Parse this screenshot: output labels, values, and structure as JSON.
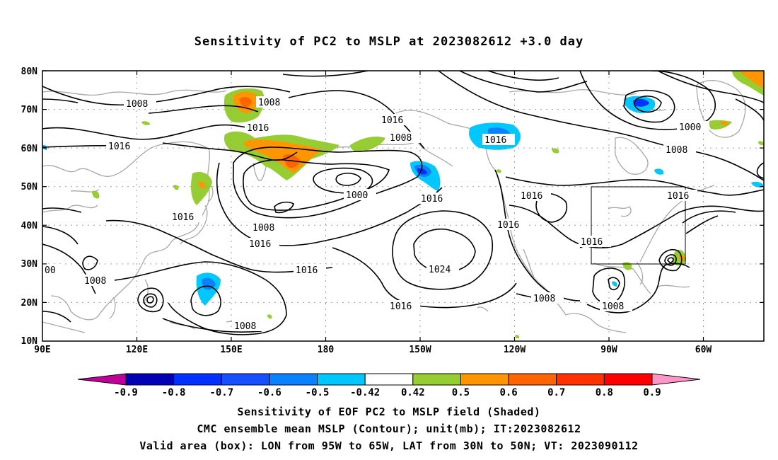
{
  "title": "Sensitivity of PC2 to MSLP at 2023082612 +3.0 day",
  "latitude_labels": [
    "80N",
    "70N",
    "60N",
    "50N",
    "40N",
    "30N",
    "20N",
    "10N"
  ],
  "longitude_labels": [
    "90E",
    "120E",
    "150E",
    "180",
    "150W",
    "120W",
    "90W",
    "60W"
  ],
  "colorbar": {
    "labels": [
      "-0.9",
      "-0.8",
      "-0.7",
      "-0.6",
      "-0.5",
      "-0.42",
      "0.42",
      "0.5",
      "0.6",
      "0.7",
      "0.8",
      "0.9"
    ],
    "colors": [
      "#bf0099",
      "#0000b4",
      "#0032ff",
      "#1450ff",
      "#0a82ff",
      "#00c8ff",
      "#ffffff",
      "#96cd32",
      "#ff9600",
      "#ff6400",
      "#ff3200",
      "#ff0000",
      "#ff96c8"
    ]
  },
  "contour_labels": {
    "c1": "1008",
    "c2": "1016",
    "c3": "1016",
    "c4": "1008",
    "c5": "1016",
    "c6": "1016",
    "c7": "1000",
    "c8": "1000",
    "c9": "1008",
    "c10": "1016",
    "c11": "1016",
    "c12": "1016",
    "c13": "1016",
    "c14": "1016",
    "c15": "1024",
    "c16": "1016",
    "c17": "1008",
    "c18": "1008",
    "c19": "1008",
    "c20": "1016",
    "c21": "00",
    "c22": "1008",
    "c23": "1008"
  },
  "valid_box": {
    "lon_from": "95W",
    "lon_to": "65W",
    "lat_from": "30N",
    "lat_to": "50N"
  },
  "footer": {
    "line1": "Sensitivity of EOF PC2 to MSLP field (Shaded)",
    "line2": "CMC ensemble mean MSLP (Contour); unit(mb); IT:2023082612",
    "line3": "Valid area (box): LON from 95W to 65W, LAT from 30N to 50N; VT: 2023090112"
  }
}
